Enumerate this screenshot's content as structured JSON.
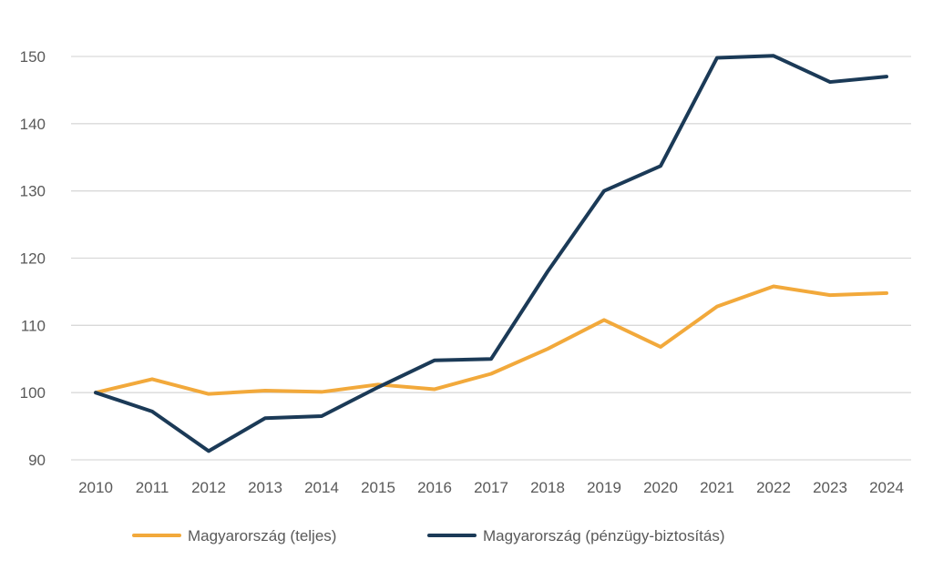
{
  "chart_data": {
    "type": "line",
    "title": "",
    "xlabel": "",
    "ylabel": "",
    "ylim": [
      90,
      150
    ],
    "yticks": [
      90,
      100,
      110,
      120,
      130,
      140,
      150
    ],
    "grid": true,
    "legend": "bottom",
    "categories": [
      "2010",
      "2011",
      "2012",
      "2013",
      "2014",
      "2015",
      "2016",
      "2017",
      "2018",
      "2019",
      "2020",
      "2021",
      "2022",
      "2023",
      "2024"
    ],
    "series": [
      {
        "name": "Magyarország (teljes)",
        "color": "#F2A93B",
        "values": [
          100,
          102,
          99.8,
          100.3,
          100.1,
          101.2,
          100.5,
          102.8,
          106.5,
          110.8,
          106.8,
          112.8,
          115.8,
          114.5,
          114.8
        ]
      },
      {
        "name": "Magyarország (pénzügy-biztosítás)",
        "color": "#1B3A57",
        "values": [
          100,
          97.2,
          91.3,
          96.2,
          96.5,
          100.8,
          104.8,
          105,
          118,
          130,
          133.7,
          149.8,
          150.1,
          146.2,
          147
        ]
      }
    ]
  }
}
